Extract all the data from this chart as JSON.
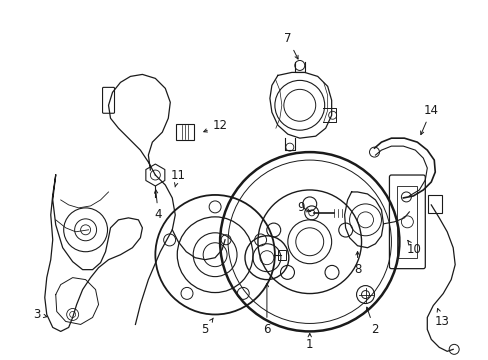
{
  "background_color": "#ffffff",
  "line_color": "#1a1a1a",
  "figure_width": 4.89,
  "figure_height": 3.6,
  "dpi": 100,
  "label_fontsize": 8.5
}
